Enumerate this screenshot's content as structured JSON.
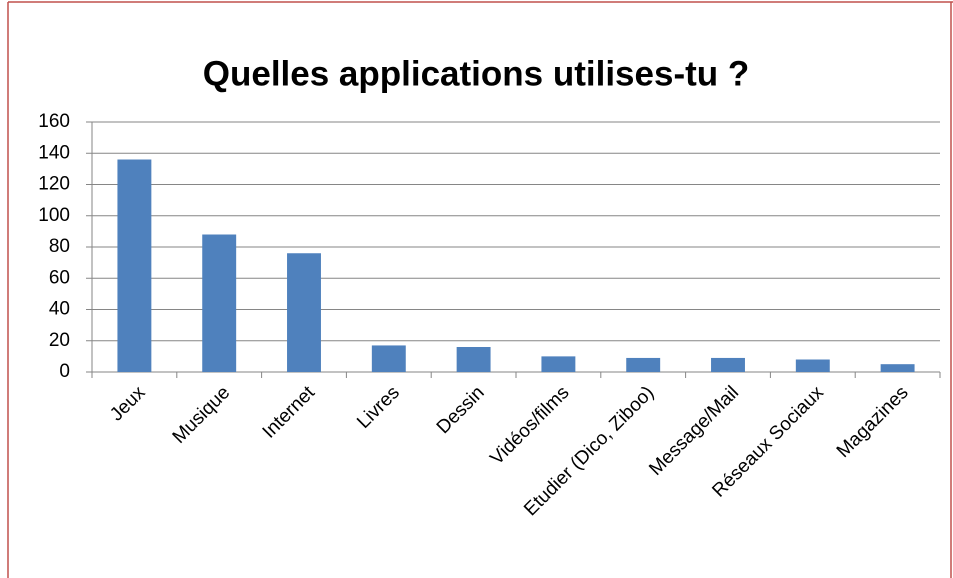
{
  "chart_data": {
    "type": "bar",
    "title": "Quelles applications utilises-tu ?",
    "categories": [
      "Jeux",
      "Musique",
      "Internet",
      "Livres",
      "Dessin",
      "Vidéos/films",
      "Etudier (Dico, Ziboo)",
      "Message/Mail",
      "Réseaux Sociaux",
      "Magazines"
    ],
    "values": [
      136,
      88,
      76,
      17,
      16,
      10,
      9,
      9,
      8,
      5
    ],
    "color": "#4f81bd",
    "ylim": [
      0,
      160
    ],
    "yticks": [
      0,
      20,
      40,
      60,
      80,
      100,
      120,
      140,
      160
    ],
    "grid": true
  }
}
